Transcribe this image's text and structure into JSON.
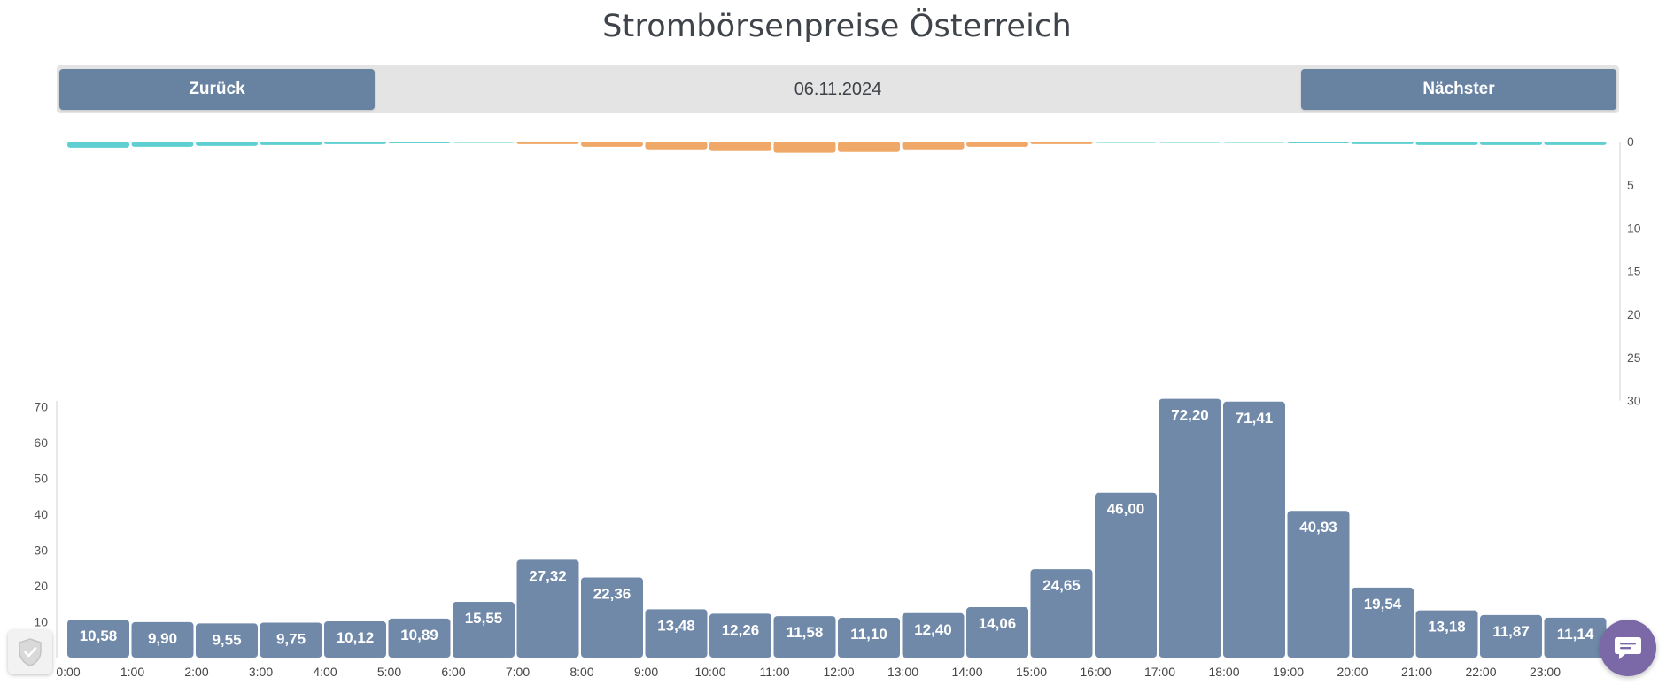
{
  "page": {
    "title": "Strombörsenpreise Österreich"
  },
  "nav": {
    "back_label": "Zurück",
    "date": "06.11.2024",
    "next_label": "Nächster"
  },
  "widgets": {
    "privacy_icon": "shield-check-icon",
    "chat_icon": "chat-bubble-icon"
  },
  "chart_data": [
    {
      "type": "bar",
      "categories": [
        "0:00",
        "1:00",
        "2:00",
        "3:00",
        "4:00",
        "5:00",
        "6:00",
        "7:00",
        "8:00",
        "9:00",
        "10:00",
        "11:00",
        "12:00",
        "13:00",
        "14:00",
        "15:00",
        "16:00",
        "17:00",
        "18:00",
        "19:00",
        "20:00",
        "21:00",
        "22:00",
        "23:00"
      ],
      "values": [
        10.58,
        9.9,
        9.55,
        9.75,
        10.12,
        10.89,
        15.55,
        27.32,
        22.36,
        13.48,
        12.26,
        11.58,
        11.1,
        12.4,
        14.06,
        24.65,
        46.0,
        72.2,
        71.41,
        40.93,
        19.54,
        13.18,
        11.87,
        11.14
      ],
      "data_labels": [
        "10,58",
        "9,90",
        "9,55",
        "9,75",
        "10,12",
        "10,89",
        "15,55",
        "27,32",
        "22,36",
        "13,48",
        "12,26",
        "11,58",
        "11,10",
        "12,40",
        "14,06",
        "24,65",
        "46,00",
        "72,20",
        "71,41",
        "40,93",
        "19,54",
        "13,18",
        "11,87",
        "11,14"
      ],
      "y_ticks": [
        10,
        20,
        30,
        40,
        50,
        60,
        70
      ],
      "ylim": [
        0,
        72
      ],
      "bar_color": "#7089a9",
      "xlabel": "",
      "ylabel": "",
      "grid": false
    },
    {
      "type": "bar",
      "orientation": "hanging",
      "categories": [
        "0:00",
        "1:00",
        "2:00",
        "3:00",
        "4:00",
        "5:00",
        "6:00",
        "7:00",
        "8:00",
        "9:00",
        "10:00",
        "11:00",
        "12:00",
        "13:00",
        "14:00",
        "15:00",
        "16:00",
        "17:00",
        "18:00",
        "19:00",
        "20:00",
        "21:00",
        "22:00",
        "23:00"
      ],
      "values": [
        0.7,
        0.6,
        0.5,
        0.4,
        0.3,
        0.2,
        0.1,
        0.3,
        0.6,
        0.9,
        1.1,
        1.3,
        1.2,
        0.9,
        0.6,
        0.3,
        0.1,
        0.1,
        0.1,
        0.2,
        0.3,
        0.4,
        0.4,
        0.4
      ],
      "colors": [
        "#5fcfd1",
        "#5fcfd1",
        "#5fcfd1",
        "#5fcfd1",
        "#5fcfd1",
        "#5fcfd1",
        "#5fcfd1",
        "#f0a868",
        "#f0a868",
        "#f0a868",
        "#f0a868",
        "#f0a868",
        "#f0a868",
        "#f0a868",
        "#f0a868",
        "#f0a868",
        "#5fcfd1",
        "#5fcfd1",
        "#5fcfd1",
        "#5fcfd1",
        "#5fcfd1",
        "#5fcfd1",
        "#5fcfd1",
        "#5fcfd1"
      ],
      "y_ticks": [
        0,
        5,
        10,
        15,
        20,
        25,
        30
      ],
      "ylim": [
        0,
        30
      ],
      "axis_position": "right",
      "grid": false
    }
  ]
}
